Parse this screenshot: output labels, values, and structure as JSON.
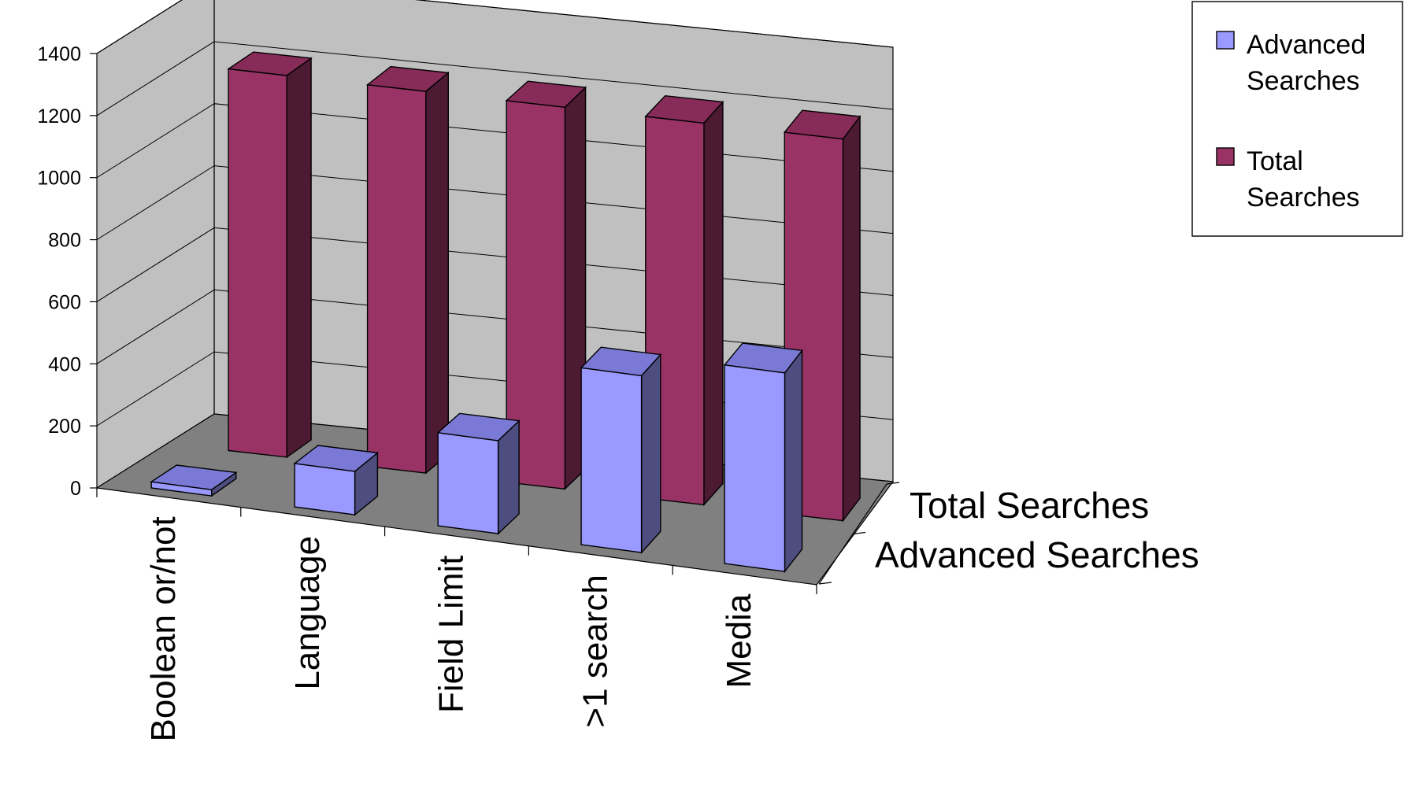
{
  "chart_data": {
    "type": "bar",
    "chart_style": "3d-column",
    "categories": [
      "Boolean or/not",
      "Language",
      "Field Limit",
      ">1 search",
      "Media"
    ],
    "series": [
      {
        "name": "Advanced Searches",
        "values": [
          20,
          140,
          300,
          570,
          640
        ]
      },
      {
        "name": "Total Searches",
        "values": [
          1230,
          1230,
          1230,
          1230,
          1230
        ]
      }
    ],
    "depth_labels": [
      "Total Searches",
      "Advanced Searches"
    ],
    "y_ticks": [
      "0",
      "200",
      "400",
      "600",
      "800",
      "1000",
      "1200",
      "1400"
    ],
    "ylim": [
      0,
      1400
    ],
    "grid": true,
    "legend": {
      "position": "top-right",
      "entries": [
        {
          "lines": [
            "Advanced",
            "Searches"
          ]
        },
        {
          "lines": [
            "Total",
            "Searches"
          ]
        }
      ]
    },
    "colors": {
      "advanced_front": "#9999ff",
      "advanced_top": "#7a7ad6",
      "advanced_side": "#4d4d80",
      "total_front": "#993366",
      "total_top": "#872b59",
      "total_side": "#4d1a33",
      "back_wall": "#c0c0c0",
      "left_wall": "#c0c0c0",
      "floor": "#808080"
    }
  }
}
